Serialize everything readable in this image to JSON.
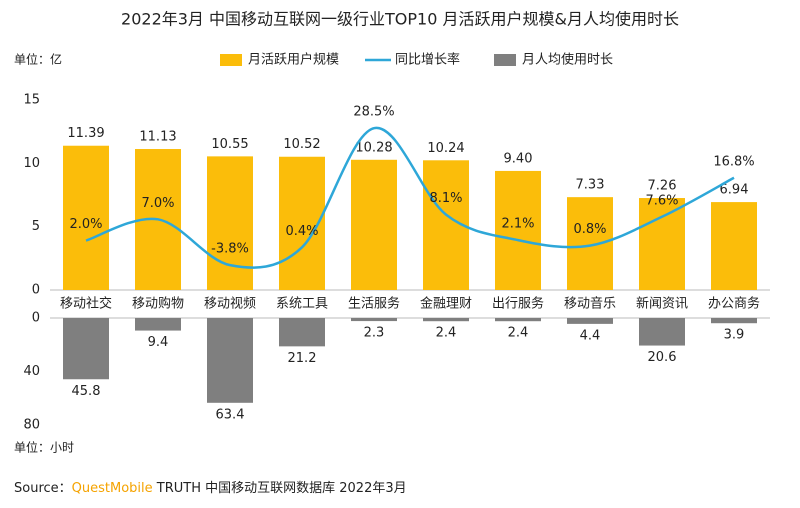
{
  "chart_data": {
    "type": "bar",
    "title": "2022年3月 中国移动互联网一级行业TOP10 月活跃用户规模&月人均使用时长",
    "y_unit": "单位：亿",
    "y2_unit": "单位：小时",
    "source_prefix": "Source：",
    "source_brand": "QuestMobile",
    "source_text": "TRUTH 中国移动互联网数据库 2022年3月",
    "categories": [
      "移动社交",
      "移动购物",
      "移动视频",
      "系统工具",
      "生活服务",
      "金融理财",
      "出行服务",
      "移动音乐",
      "新闻资讯",
      "办公商务"
    ],
    "series": [
      {
        "name": "月活跃用户规模",
        "type": "bar",
        "color": "#fbbd0a",
        "values": [
          11.39,
          11.13,
          10.55,
          10.52,
          10.28,
          10.24,
          9.4,
          7.33,
          7.26,
          6.94
        ],
        "value_labels": [
          "11.39",
          "11.13",
          "10.55",
          "10.52",
          "10.28",
          "10.24",
          "9.40",
          "7.33",
          "7.26",
          "6.94"
        ]
      },
      {
        "name": "同比增长率",
        "type": "line",
        "color": "#2ea7d8",
        "values": [
          2.0,
          7.0,
          -3.8,
          0.4,
          28.5,
          8.1,
          2.1,
          0.8,
          7.6,
          16.8
        ],
        "value_labels": [
          "2.0%",
          "7.0%",
          "-3.8%",
          "0.4%",
          "28.5%",
          "8.1%",
          "2.1%",
          "0.8%",
          "7.6%",
          "16.8%"
        ]
      },
      {
        "name": "月人均使用时长",
        "type": "bar",
        "axis": "y2",
        "color": "#7f7f7f",
        "values": [
          45.8,
          9.4,
          63.4,
          21.2,
          2.3,
          2.4,
          2.4,
          4.4,
          20.6,
          3.9
        ]
      }
    ],
    "ylim": [
      0,
      15
    ],
    "yticks": [
      0,
      5,
      10,
      15
    ],
    "y2lim": [
      0,
      80
    ],
    "y2ticks": [
      0,
      40,
      80
    ]
  }
}
